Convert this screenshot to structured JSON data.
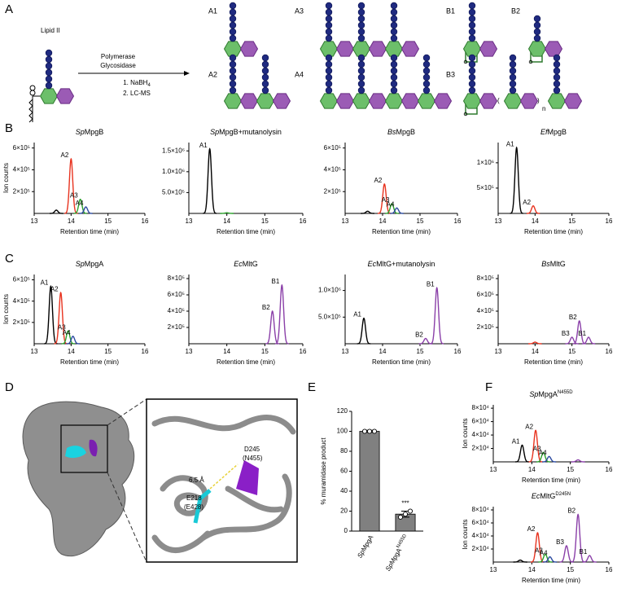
{
  "panel_labels": [
    "A",
    "B",
    "C",
    "D",
    "E",
    "F"
  ],
  "schematic": {
    "lipid_label": "Lipid II",
    "enzymes": [
      "Polymerase",
      "Glycosidase"
    ],
    "steps": [
      {
        "text": "1. NaBH",
        "sub": "4"
      },
      {
        "text": "2. LC-MS"
      }
    ],
    "products": [
      {
        "label": "A1",
        "color": "#000000"
      },
      {
        "label": "A3",
        "color": "#2ca02c"
      },
      {
        "label": "B1",
        "color": "#8a3fa8"
      },
      {
        "label": "B2",
        "color": "#8a3fa8"
      },
      {
        "label": "A2",
        "color": "#e8331f"
      },
      {
        "label": "A4",
        "color": "#2b4aa0"
      },
      {
        "label": "B3",
        "color": "#8a3fa8"
      }
    ],
    "repeat": "n"
  },
  "structure": {
    "labels": [
      "D245",
      "(N455)",
      "6.5 Å",
      "E218",
      "(E428)"
    ]
  },
  "chart_data": [
    {
      "type": "chromatogram",
      "title": {
        "italic": "Sp",
        "rest": "MpgB"
      },
      "y_label": "Ion counts",
      "x_label": "Retention time (min)",
      "xlim": [
        13,
        16
      ],
      "xticks": [
        13,
        14,
        15,
        16
      ],
      "ylim": [
        0,
        650000
      ],
      "yticks": [
        {
          "value": 200000,
          "label": "2×10⁵"
        },
        {
          "value": 400000,
          "label": "4×10⁵"
        },
        {
          "value": 600000,
          "label": "6×10⁵"
        }
      ],
      "peaks": [
        {
          "x": 13.6,
          "height": 30000,
          "color": "#000000"
        },
        {
          "x": 14.0,
          "height": 500000,
          "color": "#e8331f",
          "label": "A2"
        },
        {
          "x": 14.25,
          "height": 130000,
          "color": "#2ca02c",
          "label": "A3"
        },
        {
          "x": 14.4,
          "height": 60000,
          "color": "#2b4aa0",
          "label": "A4"
        }
      ]
    },
    {
      "type": "chromatogram",
      "title": {
        "italic": "Sp",
        "rest": "MpgB+mutanolysin"
      },
      "x_label": "Retention time (min)",
      "xlim": [
        13,
        16
      ],
      "xticks": [
        13,
        14,
        15,
        16
      ],
      "ylim": [
        0,
        1700000
      ],
      "yticks": [
        {
          "value": 500000,
          "label": "5.0×10⁵"
        },
        {
          "value": 1000000,
          "label": "1.0×10⁶"
        },
        {
          "value": 1500000,
          "label": "1.5×10⁶"
        }
      ],
      "peaks": [
        {
          "x": 13.55,
          "height": 1550000,
          "color": "#000000",
          "label": "A1"
        },
        {
          "x": 14.0,
          "height": 15000,
          "color": "#2ca02c"
        }
      ]
    },
    {
      "type": "chromatogram",
      "title": {
        "italic": "Bs",
        "rest": "MpgB"
      },
      "x_label": "Retention time (min)",
      "xlim": [
        13,
        16
      ],
      "xticks": [
        13,
        14,
        15,
        16
      ],
      "ylim": [
        0,
        650000
      ],
      "yticks": [
        {
          "value": 200000,
          "label": "2×10⁵"
        },
        {
          "value": 400000,
          "label": "4×10⁵"
        },
        {
          "value": 600000,
          "label": "6×10⁵"
        }
      ],
      "peaks": [
        {
          "x": 13.6,
          "height": 20000,
          "color": "#000000"
        },
        {
          "x": 14.05,
          "height": 270000,
          "color": "#e8331f",
          "label": "A2"
        },
        {
          "x": 14.25,
          "height": 90000,
          "color": "#2ca02c",
          "label": "A3"
        },
        {
          "x": 14.38,
          "height": 50000,
          "color": "#2b4aa0",
          "label": "A4"
        }
      ]
    },
    {
      "type": "chromatogram",
      "title": {
        "italic": "Ef",
        "rest": "MpgB"
      },
      "x_label": "Retention time (min)",
      "xlim": [
        13,
        16
      ],
      "xticks": [
        13,
        14,
        15,
        16
      ],
      "ylim": [
        0,
        1400000
      ],
      "yticks": [
        {
          "value": 500000,
          "label": "5×10⁵"
        },
        {
          "value": 1000000,
          "label": "1×10⁶"
        }
      ],
      "peaks": [
        {
          "x": 13.5,
          "height": 1300000,
          "color": "#000000",
          "label": "A1"
        },
        {
          "x": 13.95,
          "height": 150000,
          "color": "#e8331f",
          "label": "A2"
        }
      ]
    },
    {
      "type": "chromatogram",
      "title": {
        "italic": "Sp",
        "rest": "MpgA"
      },
      "y_label": "Ion counts",
      "x_label": "Retention time (min)",
      "xlim": [
        13,
        16
      ],
      "xticks": [
        13,
        14,
        15,
        16
      ],
      "ylim": [
        0,
        650000
      ],
      "yticks": [
        {
          "value": 200000,
          "label": "2×10⁵"
        },
        {
          "value": 400000,
          "label": "4×10⁵"
        },
        {
          "value": 600000,
          "label": "6×10⁵"
        }
      ],
      "peaks": [
        {
          "x": 13.45,
          "height": 540000,
          "color": "#000000",
          "label": "A1"
        },
        {
          "x": 13.72,
          "height": 480000,
          "color": "#e8331f",
          "label": "A2"
        },
        {
          "x": 13.92,
          "height": 120000,
          "color": "#2ca02c",
          "label": "A3"
        },
        {
          "x": 14.05,
          "height": 70000,
          "color": "#2b4aa0",
          "label": "A4"
        }
      ]
    },
    {
      "type": "chromatogram",
      "title": {
        "italic": "Ec",
        "rest": "MltG"
      },
      "x_label": "Retention time (min)",
      "xlim": [
        13,
        16
      ],
      "xticks": [
        13,
        14,
        15,
        16
      ],
      "ylim": [
        0,
        850000
      ],
      "yticks": [
        {
          "value": 200000,
          "label": "2×10⁵"
        },
        {
          "value": 400000,
          "label": "4×10⁵"
        },
        {
          "value": 600000,
          "label": "6×10⁵"
        },
        {
          "value": 800000,
          "label": "8×10⁵"
        }
      ],
      "peaks": [
        {
          "x": 15.2,
          "height": 400000,
          "color": "#8a3fa8",
          "label": "B2"
        },
        {
          "x": 15.45,
          "height": 720000,
          "color": "#8a3fa8",
          "label": "B1"
        }
      ]
    },
    {
      "type": "chromatogram",
      "title": {
        "italic": "Ec",
        "rest": "MltG+mutanolysin"
      },
      "x_label": "Retention time (min)",
      "xlim": [
        13,
        16
      ],
      "xticks": [
        13,
        14,
        15,
        16
      ],
      "ylim": [
        0,
        1300000
      ],
      "yticks": [
        {
          "value": 500000,
          "label": "5.0×10⁵"
        },
        {
          "value": 1000000,
          "label": "1.0×10⁶"
        }
      ],
      "peaks": [
        {
          "x": 13.5,
          "height": 480000,
          "color": "#000000",
          "label": "A1"
        },
        {
          "x": 15.15,
          "height": 100000,
          "color": "#8a3fa8",
          "label": "B2"
        },
        {
          "x": 15.45,
          "height": 1050000,
          "color": "#8a3fa8",
          "label": "B1"
        }
      ]
    },
    {
      "type": "chromatogram",
      "title": {
        "italic": "Bs",
        "rest": "MltG"
      },
      "x_label": "Retention time (min)",
      "xlim": [
        13,
        16
      ],
      "xticks": [
        13,
        14,
        15,
        16
      ],
      "ylim": [
        0,
        850000
      ],
      "yticks": [
        {
          "value": 200000,
          "label": "2×10⁵"
        },
        {
          "value": 400000,
          "label": "4×10⁵"
        },
        {
          "value": 600000,
          "label": "6×10⁵"
        },
        {
          "value": 800000,
          "label": "8×10⁵"
        }
      ],
      "peaks": [
        {
          "x": 14.0,
          "height": 20000,
          "color": "#e8331f"
        },
        {
          "x": 15.0,
          "height": 80000,
          "color": "#8a3fa8",
          "label": "B3"
        },
        {
          "x": 15.2,
          "height": 280000,
          "color": "#8a3fa8",
          "label": "B2"
        },
        {
          "x": 15.45,
          "height": 80000,
          "color": "#8a3fa8",
          "label": "B1"
        }
      ]
    },
    {
      "type": "bar",
      "y_label": "% muramidase product",
      "categories": [
        {
          "italic": "Sp",
          "rest": "MpgA"
        },
        {
          "italic": "Sp",
          "rest": "MpgA",
          "sup": "N455D"
        }
      ],
      "values": [
        100,
        17
      ],
      "errors": [
        1,
        3
      ],
      "points": [
        [
          100,
          100,
          100
        ],
        [
          14,
          17,
          20
        ]
      ],
      "ylim": [
        0,
        120
      ],
      "yticks": [
        0,
        20,
        40,
        60,
        80,
        100,
        120
      ],
      "color": "#808080",
      "annotation": "***"
    },
    {
      "type": "chromatogram",
      "title": {
        "italic": "Sp",
        "rest": "MpgA",
        "sup": "N455D"
      },
      "y_label": "Ion counts",
      "x_label": "Retention time (min)",
      "xlim": [
        13,
        16
      ],
      "xticks": [
        13,
        14,
        15,
        16
      ],
      "ylim": [
        0,
        85000
      ],
      "yticks": [
        {
          "value": 20000,
          "label": "2×10⁴"
        },
        {
          "value": 40000,
          "label": "4×10⁴"
        },
        {
          "value": 60000,
          "label": "6×10⁴"
        },
        {
          "value": 80000,
          "label": "8×10⁴"
        }
      ],
      "peaks": [
        {
          "x": 13.75,
          "height": 25000,
          "color": "#000000",
          "label": "A1"
        },
        {
          "x": 14.1,
          "height": 47000,
          "color": "#e8331f",
          "label": "A2"
        },
        {
          "x": 14.3,
          "height": 14000,
          "color": "#2ca02c",
          "label": "A3"
        },
        {
          "x": 14.45,
          "height": 8000,
          "color": "#2b4aa0",
          "label": "A4"
        },
        {
          "x": 15.2,
          "height": 3000,
          "color": "#8a3fa8"
        }
      ]
    },
    {
      "type": "chromatogram",
      "title": {
        "italic": "Ec",
        "rest": "MltG",
        "sup": "D245N"
      },
      "y_label": "Ion counts",
      "x_label": "Retention time (min)",
      "xlim": [
        13,
        16
      ],
      "xticks": [
        13,
        14,
        15,
        16
      ],
      "ylim": [
        0,
        85000
      ],
      "yticks": [
        {
          "value": 20000,
          "label": "2×10⁴"
        },
        {
          "value": 40000,
          "label": "4×10⁴"
        },
        {
          "value": 60000,
          "label": "6×10⁴"
        },
        {
          "value": 80000,
          "label": "8×10⁴"
        }
      ],
      "peaks": [
        {
          "x": 13.7,
          "height": 3000,
          "color": "#000000"
        },
        {
          "x": 14.15,
          "height": 45000,
          "color": "#e8331f",
          "label": "A2"
        },
        {
          "x": 14.35,
          "height": 12000,
          "color": "#2ca02c",
          "label": "A3"
        },
        {
          "x": 14.47,
          "height": 8000,
          "color": "#2b4aa0",
          "label": "A4"
        },
        {
          "x": 14.9,
          "height": 25000,
          "color": "#8a3fa8",
          "label": "B3"
        },
        {
          "x": 15.2,
          "height": 73000,
          "color": "#8a3fa8",
          "label": "B2"
        },
        {
          "x": 15.5,
          "height": 10000,
          "color": "#8a3fa8",
          "label": "B1"
        }
      ]
    }
  ]
}
